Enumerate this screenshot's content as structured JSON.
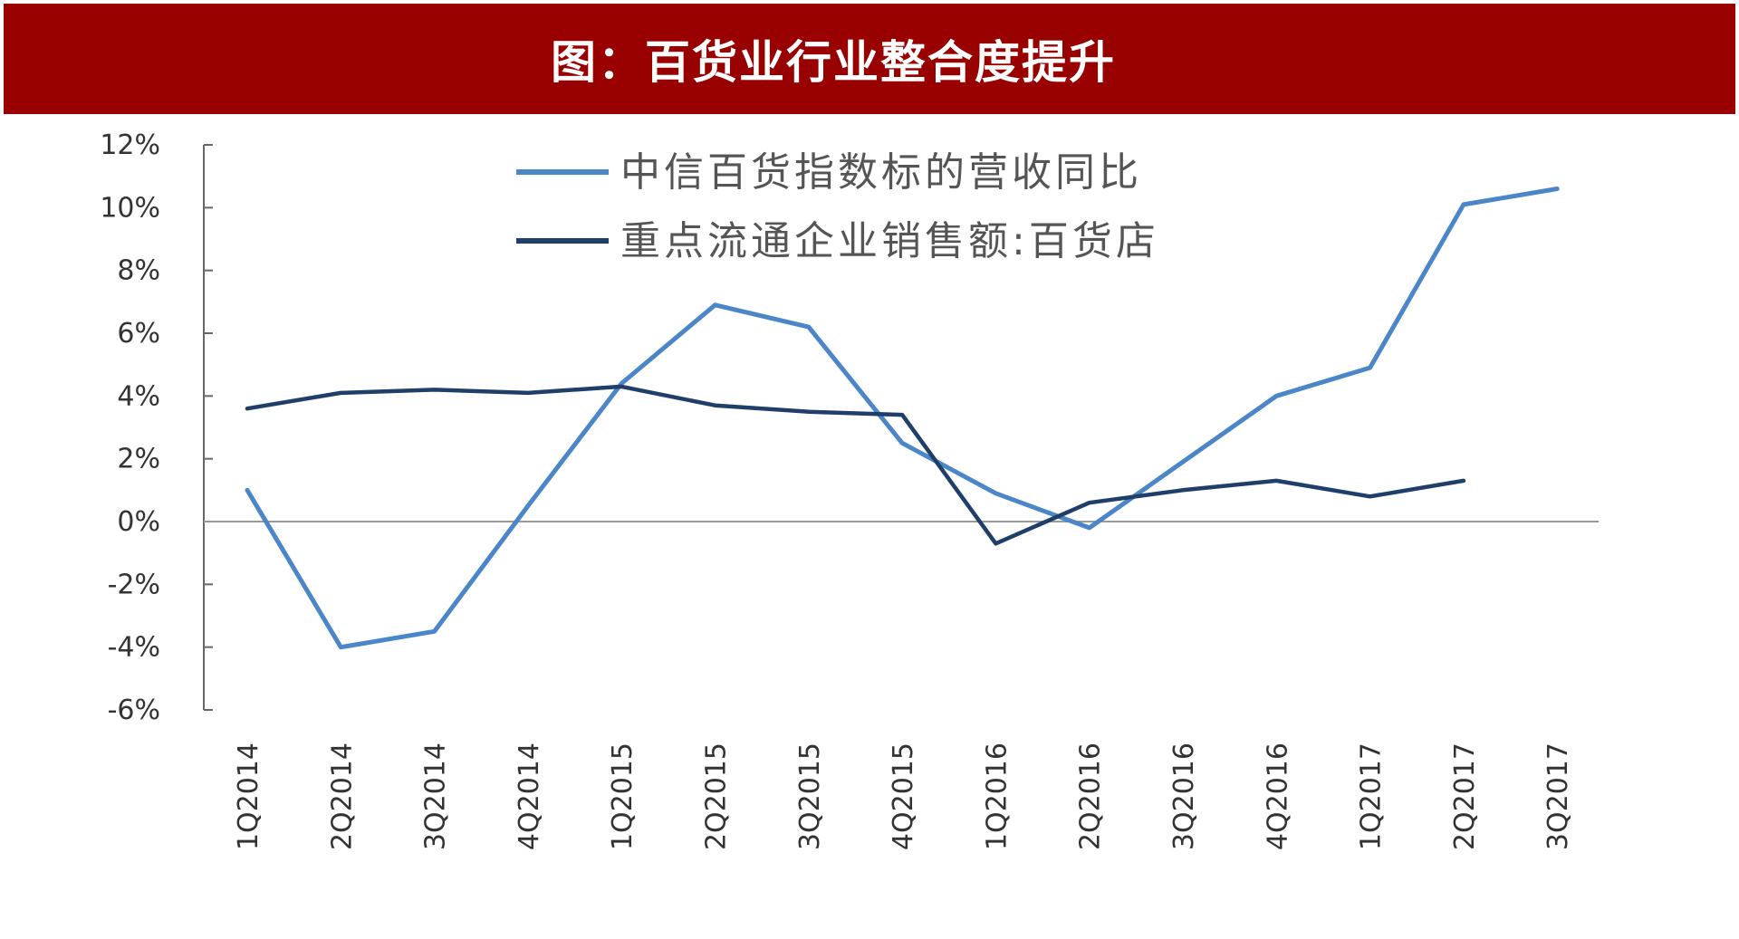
{
  "header": {
    "title": "图：百货业行业整合度提升"
  },
  "colors": {
    "banner": "#990000",
    "series_light": "#4a86c8",
    "series_dark": "#1f3f6a",
    "axis": "#666666",
    "zero_line": "#999999"
  },
  "chart_data": {
    "type": "line",
    "title": "图：百货业行业整合度提升",
    "categories": [
      "1Q2014",
      "2Q2014",
      "3Q2014",
      "4Q2014",
      "1Q2015",
      "2Q2015",
      "3Q2015",
      "4Q2015",
      "1Q2016",
      "2Q2016",
      "3Q2016",
      "4Q2016",
      "1Q2017",
      "2Q2017",
      "3Q2017"
    ],
    "series": [
      {
        "name": "中信百货指数标的营收同比",
        "color": "#4a86c8",
        "values": [
          1.0,
          -4.0,
          -3.5,
          0.5,
          4.4,
          6.9,
          6.2,
          2.5,
          0.9,
          -0.2,
          1.9,
          4.0,
          4.9,
          10.1,
          10.6
        ]
      },
      {
        "name": "重点流通企业销售额:百货店",
        "color": "#1f3f6a",
        "values": [
          3.6,
          4.1,
          4.2,
          4.1,
          4.3,
          3.7,
          3.5,
          3.4,
          -0.7,
          0.6,
          1.0,
          1.3,
          0.8,
          1.3,
          null
        ]
      }
    ],
    "y_ticks": [
      "12%",
      "10%",
      "8%",
      "6%",
      "4%",
      "2%",
      "0%",
      "-2%",
      "-4%",
      "-6%"
    ],
    "ylim": [
      -6,
      12
    ],
    "ytick_step": 2,
    "grid": false,
    "legend_position": "top-center"
  }
}
